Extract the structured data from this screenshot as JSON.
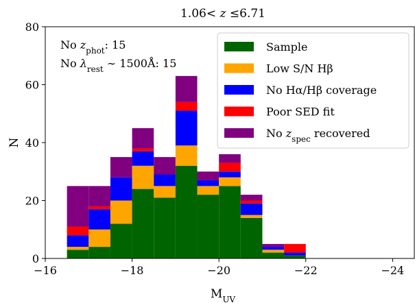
{
  "chart_data": {
    "type": "bar",
    "stacked": true,
    "title_parts": {
      "left": "1.06< ",
      "var": "z",
      "right": " ≤6.71"
    },
    "xlabel": {
      "main": "M",
      "sub": "UV"
    },
    "ylabel": "N",
    "xlim": [
      -16,
      -24.5
    ],
    "ylim": [
      0,
      80
    ],
    "x_inverted": true,
    "bin_edges": [
      -16.5,
      -17.0,
      -17.5,
      -18.0,
      -18.5,
      -19.0,
      -19.5,
      -20.0,
      -20.5,
      -21.0,
      -21.5,
      -22.0
    ],
    "xticks": [
      -16,
      -18,
      -20,
      -22,
      -24
    ],
    "xtick_labels": [
      "−16",
      "−18",
      "−20",
      "−22",
      "−24"
    ],
    "yticks": [
      0,
      20,
      40,
      60,
      80
    ],
    "ytick_labels": [
      "0",
      "20",
      "40",
      "60",
      "80"
    ],
    "grid": false,
    "legend_position": "top-right",
    "series": [
      {
        "name": "Sample",
        "color": "#006400",
        "values": [
          3,
          4,
          12,
          24,
          21,
          32,
          22,
          25,
          14,
          2,
          1
        ]
      },
      {
        "name": "Low S/N Hβ",
        "color": "#FFA500",
        "values": [
          1,
          6,
          8,
          8,
          4,
          7,
          3,
          3,
          1,
          1,
          0
        ]
      },
      {
        "name": "No Hα/Hβ coverage",
        "color": "#0000FF",
        "values": [
          4,
          7,
          8,
          5,
          4,
          12,
          2,
          2,
          4,
          1,
          1
        ]
      },
      {
        "name": "Poor SED fit",
        "color": "#FF0000",
        "values": [
          3,
          1,
          0,
          1,
          0,
          3,
          0,
          3,
          1,
          0,
          3
        ]
      },
      {
        "name": "No z_spec recovered",
        "color": "#800080",
        "values": [
          14,
          7,
          7,
          7,
          6,
          9,
          3,
          3,
          2,
          1,
          0
        ]
      }
    ],
    "legend_labels": [
      {
        "text": "Sample"
      },
      {
        "text": "Low S/N Hβ"
      },
      {
        "text": "No Hα/Hβ coverage"
      },
      {
        "text": "Poor SED fit"
      },
      {
        "pre": "No ",
        "var": "z",
        "sub": "spec",
        "post": " recovered"
      }
    ],
    "annotations": [
      {
        "pre": "No ",
        "var": "z",
        "sub": "phot",
        "post": ": 15"
      },
      {
        "pre": "No ",
        "var": "λ",
        "sub": "rest",
        "post": " ∼ 1500Å: 15"
      }
    ]
  }
}
